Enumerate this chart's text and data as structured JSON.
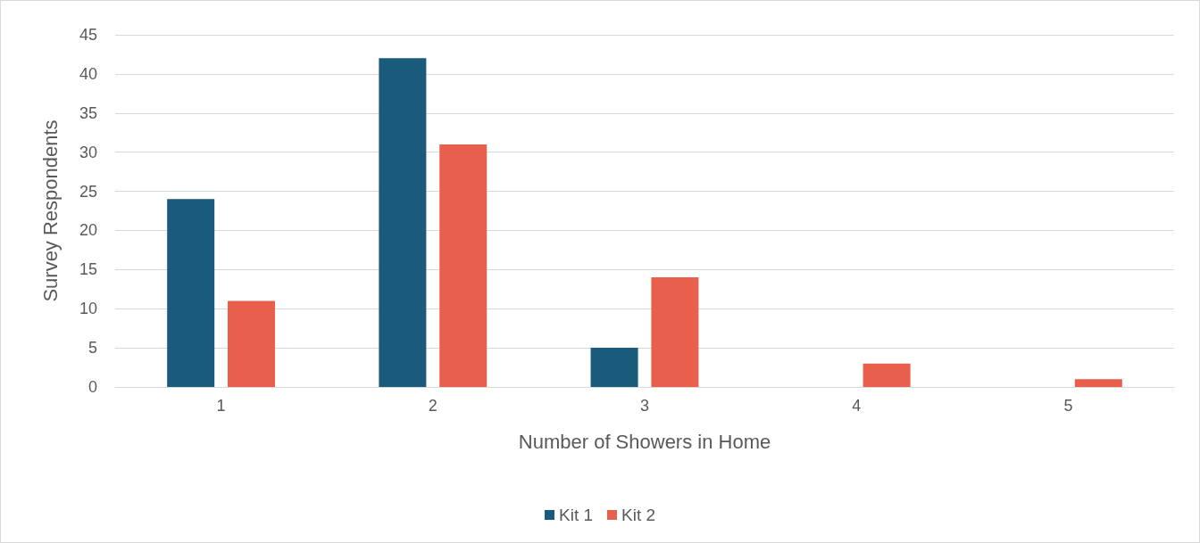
{
  "chart_data": {
    "type": "bar",
    "xlabel": "Number of Showers in Home",
    "ylabel": "Survey Respondents",
    "categories": [
      "1",
      "2",
      "3",
      "4",
      "5"
    ],
    "series": [
      {
        "name": "Kit 1",
        "color": "#1a5a7a",
        "values": [
          24,
          42,
          5,
          0,
          0
        ]
      },
      {
        "name": "Kit 2",
        "color": "#e8604c",
        "values": [
          11,
          31,
          14,
          3,
          1
        ]
      }
    ],
    "ylim": [
      0,
      45
    ],
    "yticks": [
      0,
      5,
      10,
      15,
      20,
      25,
      30,
      35,
      40,
      45
    ],
    "grid": "y",
    "legend": "bottom"
  }
}
